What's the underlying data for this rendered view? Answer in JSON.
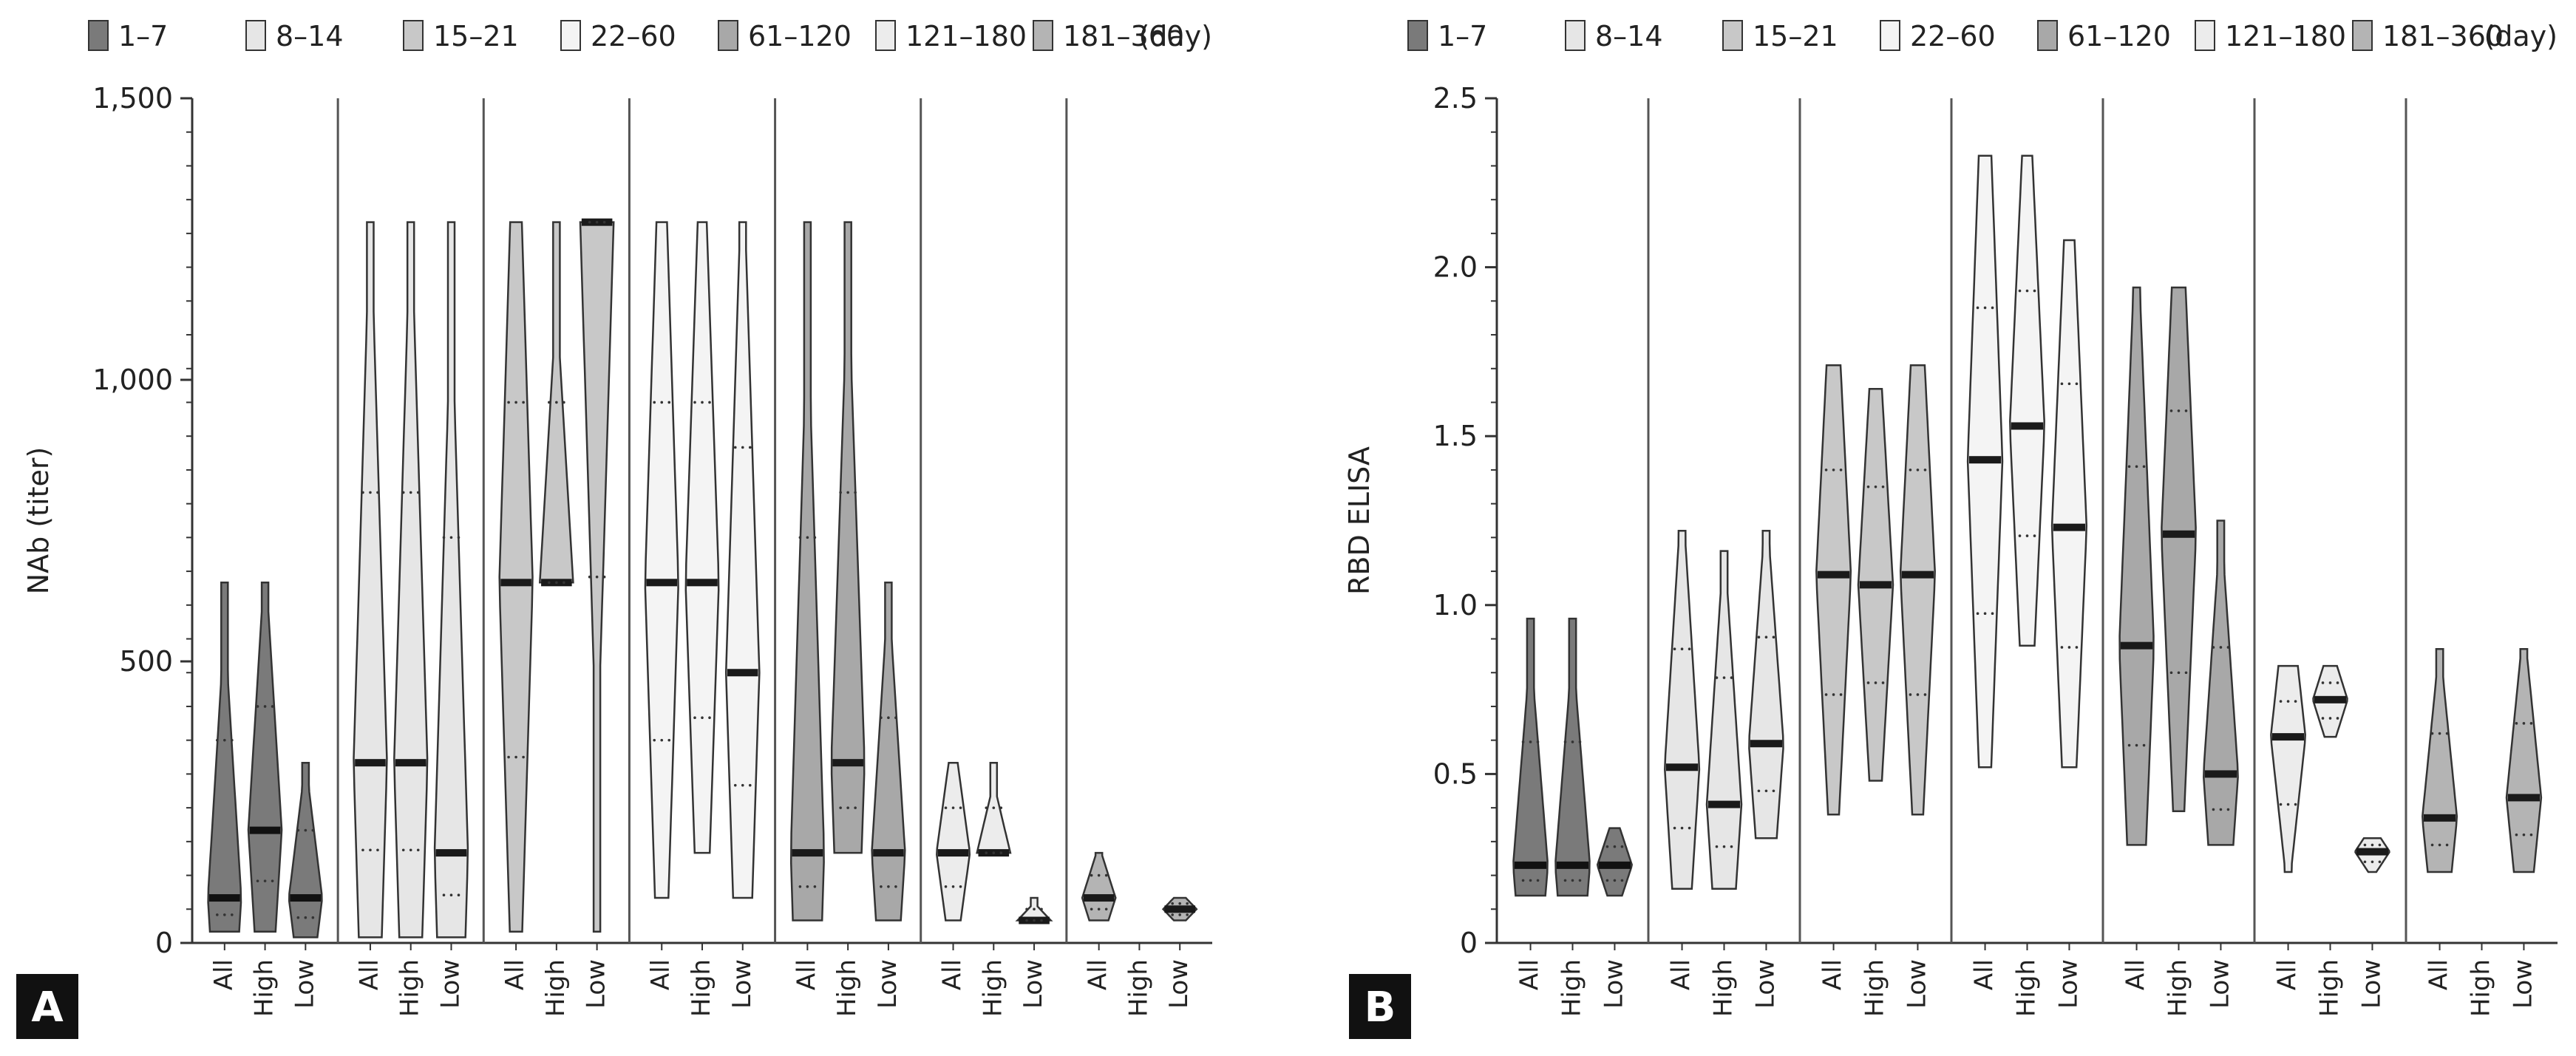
{
  "chart_data": [
    {
      "type": "violin",
      "panel": "A",
      "ylabel": "NAb (titer)",
      "ylim": [
        0,
        1500
      ],
      "yticks": [
        0,
        500,
        1000,
        1500
      ],
      "ytick_labels": [
        "0",
        "500",
        "1,000",
        "1,500"
      ],
      "legend_unit": "(day)",
      "subgroups": [
        "All",
        "High",
        "Low"
      ],
      "series": [
        {
          "name": "1–7",
          "color": "#7a7a7a",
          "groups": [
            {
              "label": "All",
              "min": 20,
              "max": 640,
              "median": 80
            },
            {
              "label": "High",
              "min": 20,
              "max": 640,
              "median": 200
            },
            {
              "label": "Low",
              "min": 10,
              "max": 320,
              "median": 80
            }
          ]
        },
        {
          "name": "8–14",
          "color": "#e6e6e6",
          "groups": [
            {
              "label": "All",
              "min": 10,
              "max": 1280,
              "median": 320
            },
            {
              "label": "High",
              "min": 10,
              "max": 1280,
              "median": 320
            },
            {
              "label": "Low",
              "min": 10,
              "max": 1280,
              "median": 160
            }
          ]
        },
        {
          "name": "15–21",
          "color": "#c8c8c8",
          "groups": [
            {
              "label": "All",
              "min": 20,
              "max": 1280,
              "median": 640
            },
            {
              "label": "High",
              "min": 640,
              "max": 1280,
              "median": 640
            },
            {
              "label": "Low",
              "min": 20,
              "max": 1280,
              "median": 1280
            }
          ]
        },
        {
          "name": "22–60",
          "color": "#f4f4f4",
          "groups": [
            {
              "label": "All",
              "min": 80,
              "max": 1280,
              "median": 640
            },
            {
              "label": "High",
              "min": 160,
              "max": 1280,
              "median": 640
            },
            {
              "label": "Low",
              "min": 80,
              "max": 1280,
              "median": 480
            }
          ]
        },
        {
          "name": "61–120",
          "color": "#a8a8a8",
          "groups": [
            {
              "label": "All",
              "min": 40,
              "max": 1280,
              "median": 160
            },
            {
              "label": "High",
              "min": 160,
              "max": 1280,
              "median": 320
            },
            {
              "label": "Low",
              "min": 40,
              "max": 640,
              "median": 160
            }
          ]
        },
        {
          "name": "121–180",
          "color": "#ececec",
          "groups": [
            {
              "label": "All",
              "min": 40,
              "max": 320,
              "median": 160
            },
            {
              "label": "High",
              "min": 160,
              "max": 320,
              "median": 160
            },
            {
              "label": "Low",
              "min": 40,
              "max": 80,
              "median": 40
            }
          ]
        },
        {
          "name": "181–360",
          "color": "#b4b4b4",
          "groups": [
            {
              "label": "All",
              "min": 40,
              "max": 160,
              "median": 80
            },
            {
              "label": "High",
              "min": null,
              "max": null,
              "median": null
            },
            {
              "label": "Low",
              "min": 40,
              "max": 80,
              "median": 60
            }
          ]
        }
      ]
    },
    {
      "type": "violin",
      "panel": "B",
      "ylabel": "RBD ELISA",
      "ylim": [
        0,
        2.5
      ],
      "yticks": [
        0,
        0.5,
        1.0,
        1.5,
        2.0,
        2.5
      ],
      "ytick_labels": [
        "0",
        "0.5",
        "1.0",
        "1.5",
        "2.0",
        "2.5"
      ],
      "legend_unit": "(day)",
      "subgroups": [
        "All",
        "High",
        "Low"
      ],
      "series": [
        {
          "name": "1–7",
          "color": "#7a7a7a",
          "groups": [
            {
              "label": "All",
              "min": 0.14,
              "max": 0.96,
              "median": 0.23
            },
            {
              "label": "High",
              "min": 0.14,
              "max": 0.96,
              "median": 0.23
            },
            {
              "label": "Low",
              "min": 0.14,
              "max": 0.34,
              "median": 0.23
            }
          ]
        },
        {
          "name": "8–14",
          "color": "#e6e6e6",
          "groups": [
            {
              "label": "All",
              "min": 0.16,
              "max": 1.22,
              "median": 0.52
            },
            {
              "label": "High",
              "min": 0.16,
              "max": 1.16,
              "median": 0.41
            },
            {
              "label": "Low",
              "min": 0.31,
              "max": 1.22,
              "median": 0.59
            }
          ]
        },
        {
          "name": "15–21",
          "color": "#c8c8c8",
          "groups": [
            {
              "label": "All",
              "min": 0.38,
              "max": 1.71,
              "median": 1.09
            },
            {
              "label": "High",
              "min": 0.48,
              "max": 1.64,
              "median": 1.06
            },
            {
              "label": "Low",
              "min": 0.38,
              "max": 1.71,
              "median": 1.09
            }
          ]
        },
        {
          "name": "22–60",
          "color": "#f4f4f4",
          "groups": [
            {
              "label": "All",
              "min": 0.52,
              "max": 2.33,
              "median": 1.43
            },
            {
              "label": "High",
              "min": 0.88,
              "max": 2.33,
              "median": 1.53
            },
            {
              "label": "Low",
              "min": 0.52,
              "max": 2.08,
              "median": 1.23
            }
          ]
        },
        {
          "name": "61–120",
          "color": "#a8a8a8",
          "groups": [
            {
              "label": "All",
              "min": 0.29,
              "max": 1.94,
              "median": 0.88
            },
            {
              "label": "High",
              "min": 0.39,
              "max": 1.94,
              "median": 1.21
            },
            {
              "label": "Low",
              "min": 0.29,
              "max": 1.25,
              "median": 0.5
            }
          ]
        },
        {
          "name": "121–180",
          "color": "#ececec",
          "groups": [
            {
              "label": "All",
              "min": 0.21,
              "max": 0.82,
              "median": 0.61
            },
            {
              "label": "High",
              "min": 0.61,
              "max": 0.82,
              "median": 0.72
            },
            {
              "label": "Low",
              "min": 0.21,
              "max": 0.31,
              "median": 0.27
            }
          ]
        },
        {
          "name": "181–360",
          "color": "#b4b4b4",
          "groups": [
            {
              "label": "All",
              "min": 0.21,
              "max": 0.87,
              "median": 0.37
            },
            {
              "label": "High",
              "min": null,
              "max": null,
              "median": null
            },
            {
              "label": "Low",
              "min": 0.21,
              "max": 0.87,
              "median": 0.43
            }
          ]
        }
      ]
    }
  ]
}
